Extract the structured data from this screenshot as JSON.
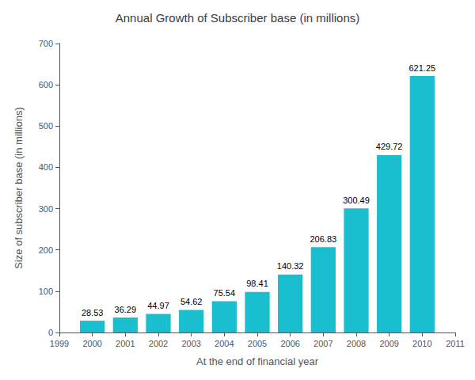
{
  "chart_data": {
    "type": "bar",
    "title": "Annual Growth of Subscriber base (in millions)",
    "xlabel": "At the end of financial year",
    "ylabel": "Size of subscriber base (in millions)",
    "x": [
      2000,
      2001,
      2002,
      2003,
      2004,
      2005,
      2006,
      2007,
      2008,
      2009,
      2010
    ],
    "values": [
      28.53,
      36.29,
      44.97,
      54.62,
      75.54,
      98.41,
      140.32,
      206.83,
      300.49,
      429.72,
      621.25
    ],
    "color": "#1ABFCF",
    "xlim": [
      1999,
      2011
    ],
    "xticks": [
      1999,
      2000,
      2001,
      2002,
      2003,
      2004,
      2005,
      2006,
      2007,
      2008,
      2009,
      2010,
      2011
    ],
    "ylim": [
      0,
      700
    ],
    "yticks": [
      0,
      100,
      200,
      300,
      400,
      500,
      600,
      700
    ],
    "grid": false,
    "data_labels": true
  }
}
